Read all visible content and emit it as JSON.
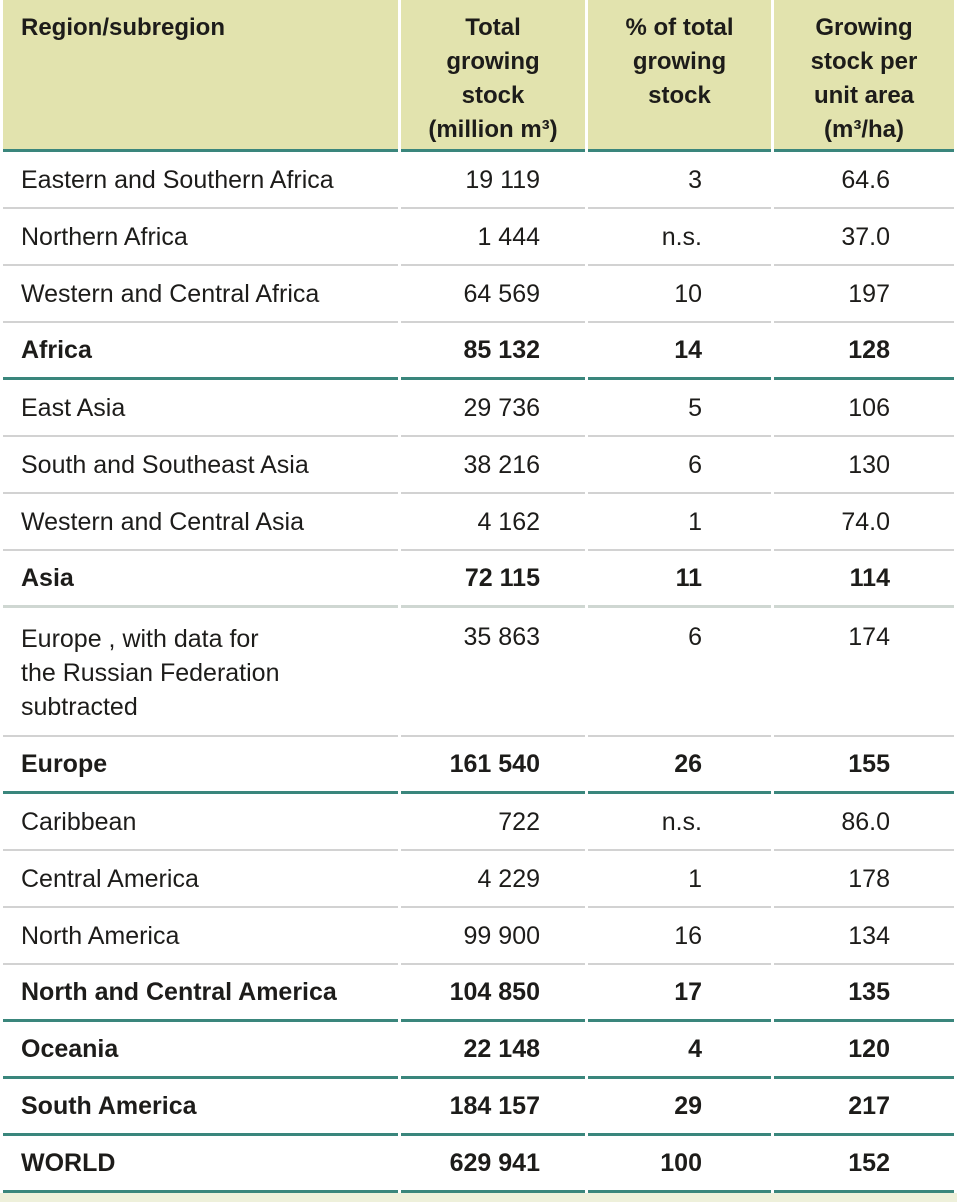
{
  "table": {
    "columns": [
      {
        "id": "region",
        "label": "Region/subregion"
      },
      {
        "id": "total",
        "label": "Total\ngrowing\nstock\n(million m³)"
      },
      {
        "id": "pct",
        "label": "% of total\ngrowing\nstock"
      },
      {
        "id": "per_area",
        "label": "Growing\nstock per\nunit area\n(m³/ha)"
      }
    ],
    "rows": [
      {
        "region": "Eastern and Southern Africa",
        "total": "19 119",
        "pct": "3",
        "per_area": "64.6",
        "style": "normal"
      },
      {
        "region": "Northern Africa",
        "total": "1 444",
        "pct": "n.s.",
        "per_area": "37.0",
        "style": "normal"
      },
      {
        "region": "Western and Central Africa",
        "total": "64 569",
        "pct": "10",
        "per_area": "197",
        "style": "normal"
      },
      {
        "region": "Africa",
        "total": "85 132",
        "pct": "14",
        "per_area": "128",
        "style": "subtotal"
      },
      {
        "region": "East Asia",
        "total": "29 736",
        "pct": "5",
        "per_area": "106",
        "style": "normal"
      },
      {
        "region": "South and Southeast Asia",
        "total": "38 216",
        "pct": "6",
        "per_area": "130",
        "style": "normal"
      },
      {
        "region": "Western and Central Asia",
        "total": "4 162",
        "pct": "1",
        "per_area": "74.0",
        "style": "normal"
      },
      {
        "region": "Asia",
        "total": "72 115",
        "pct": "11",
        "per_area": "114",
        "style": "subtotal-gray"
      },
      {
        "region": "Europe , with data for\nthe Russian Federation\nsubtracted",
        "total": "35 863",
        "pct": "6",
        "per_area": "174",
        "style": "multiline"
      },
      {
        "region": "Europe",
        "total": "161 540",
        "pct": "26",
        "per_area": "155",
        "style": "subtotal"
      },
      {
        "region": "Caribbean",
        "total": "722",
        "pct": "n.s.",
        "per_area": "86.0",
        "style": "normal"
      },
      {
        "region": "Central America",
        "total": "4 229",
        "pct": "1",
        "per_area": "178",
        "style": "normal"
      },
      {
        "region": "North America",
        "total": "99 900",
        "pct": "16",
        "per_area": "134",
        "style": "normal"
      },
      {
        "region": "North and Central America",
        "total": "104 850",
        "pct": "17",
        "per_area": "135",
        "style": "subtotal"
      },
      {
        "region": "Oceania",
        "total": "22 148",
        "pct": "4",
        "per_area": "120",
        "style": "subtotal"
      },
      {
        "region": "South America",
        "total": "184 157",
        "pct": "29",
        "per_area": "217",
        "style": "subtotal"
      },
      {
        "region": "WORLD",
        "total": "629 941",
        "pct": "100",
        "per_area": "152",
        "style": "subtotal"
      }
    ],
    "colors": {
      "header_background": "#e2e3ae",
      "group_rule_teal": "#3a867c",
      "row_rule_gray": "#d2d2d2",
      "asia_rule_graygreen": "#cfd7d2",
      "footer_strip": "#eef0da",
      "text": "#1d1c1a"
    }
  }
}
